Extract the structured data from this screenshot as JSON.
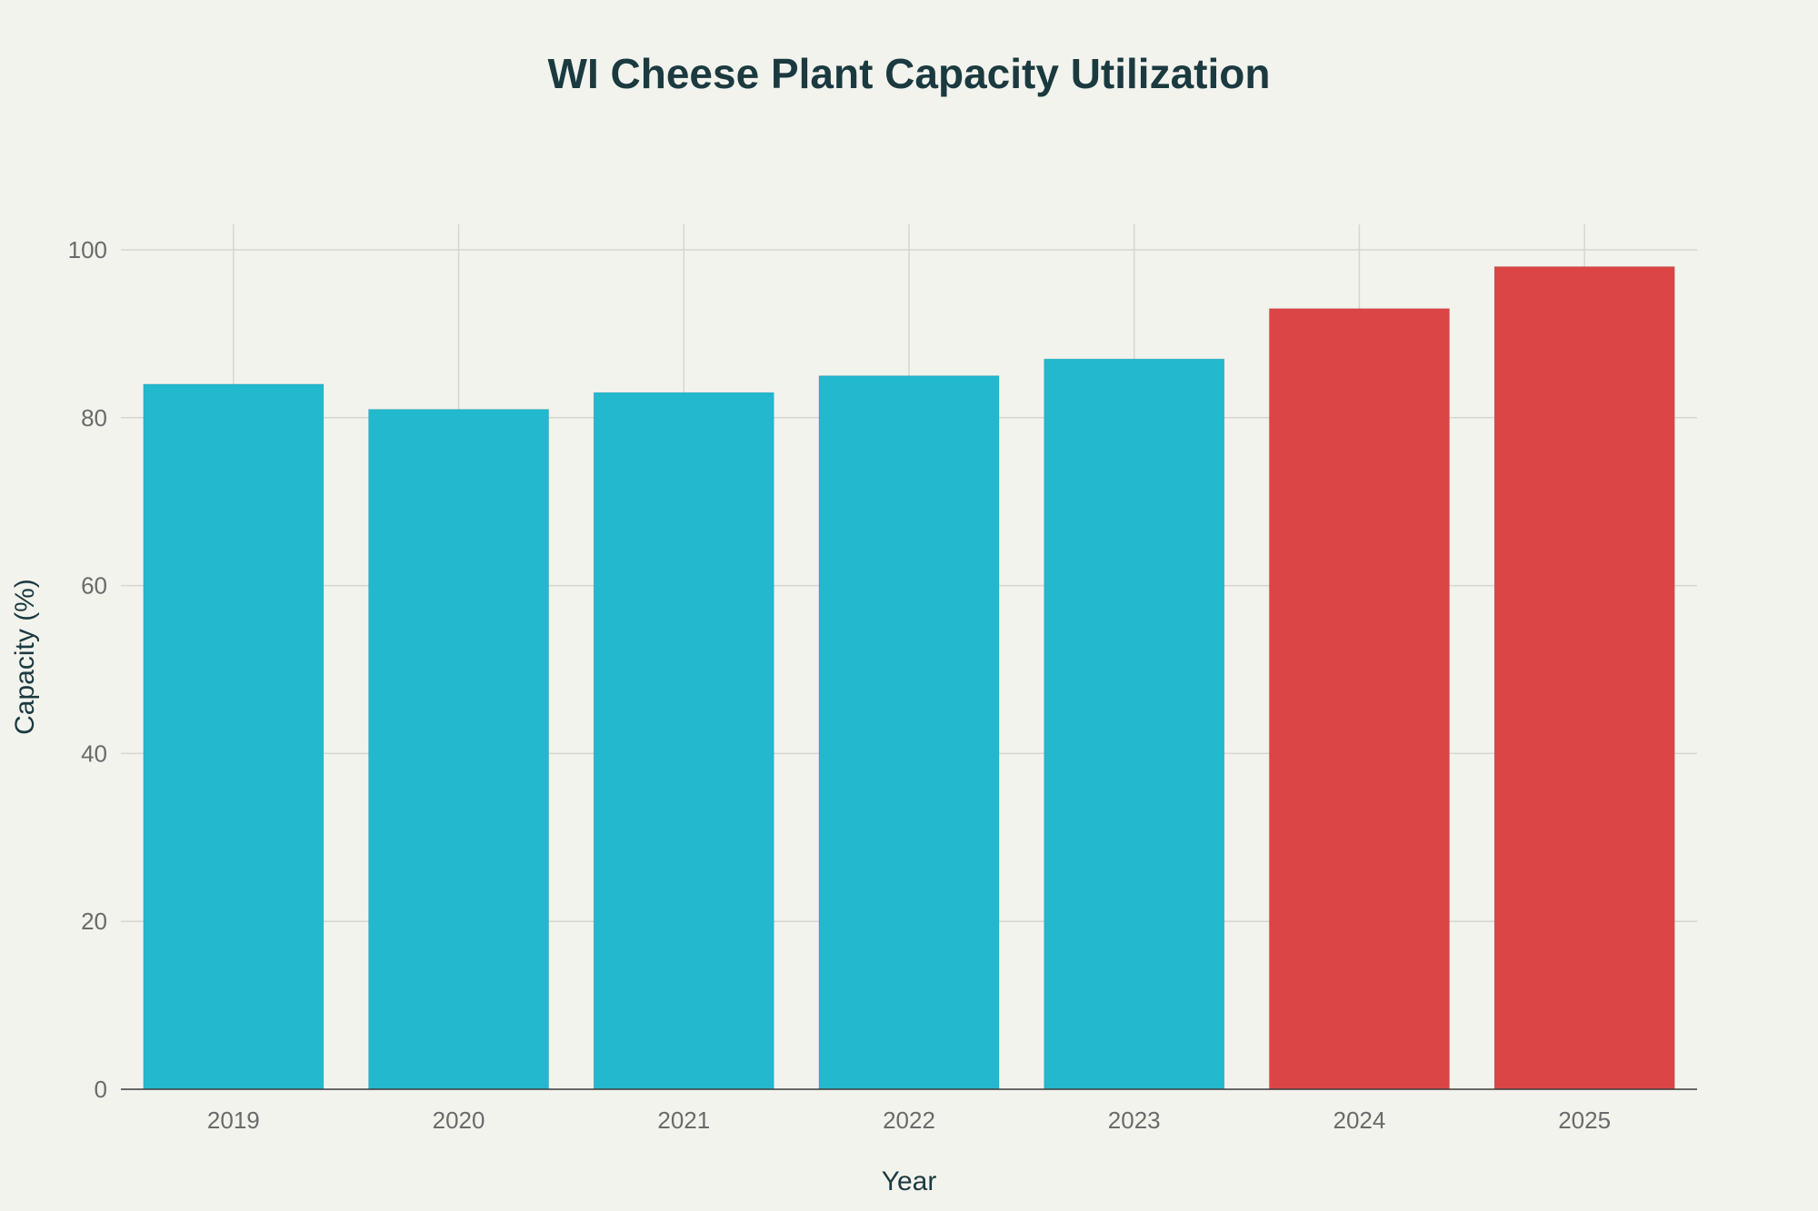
{
  "chart_data": {
    "type": "bar",
    "title": "WI Cheese Plant Capacity Utilization",
    "xlabel": "Year",
    "ylabel": "Capacity (%)",
    "categories": [
      "2019",
      "2020",
      "2021",
      "2022",
      "2023",
      "2024",
      "2025"
    ],
    "values": [
      84,
      81,
      83,
      85,
      87,
      93,
      98
    ],
    "bar_colors": [
      "#22b8cd",
      "#22b8cd",
      "#22b8cd",
      "#22b8cd",
      "#22b8cd",
      "#db4545",
      "#db4545"
    ],
    "ylim": [
      0,
      100
    ],
    "yticks": [
      0,
      20,
      40,
      60,
      80,
      100
    ],
    "grid": true,
    "legend": "none"
  },
  "colors": {
    "background": "#f3f3ee",
    "primary_bar": "#22b8cd",
    "highlight_bar": "#db4545",
    "title": "#1b3a40"
  }
}
